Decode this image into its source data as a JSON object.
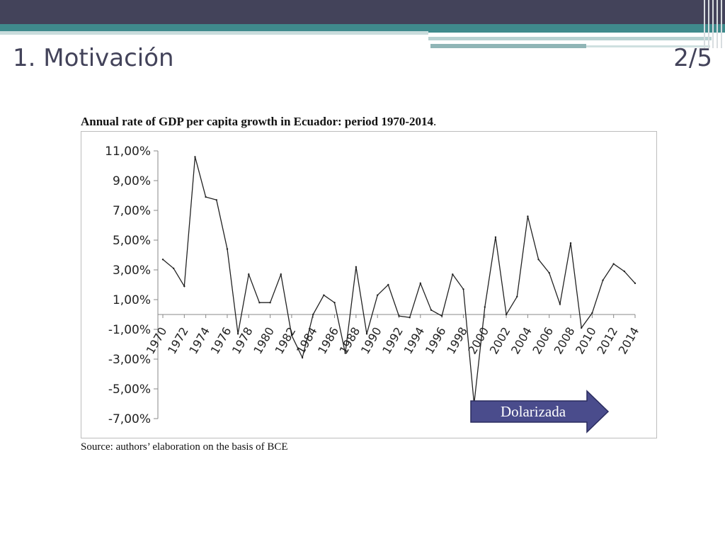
{
  "slide": {
    "title": "1. Motivación",
    "page_indicator": "2/5"
  },
  "colors": {
    "header_dark": "#43435a",
    "header_teal": "#3f8a8c",
    "arrow_fill": "#4a4c8c",
    "line": "#222222"
  },
  "caption": {
    "main": "Annual rate of GDP per capita growth in Ecuador: period 1970-2014",
    "trailing": "."
  },
  "source": "Source: authors’ elaboration on the basis of BCE",
  "chart_data": {
    "type": "line",
    "title": "",
    "xlabel": "",
    "ylabel": "",
    "ylim": [
      -7,
      11
    ],
    "yticks": [
      11,
      9,
      7,
      5,
      3,
      1,
      -1,
      -3,
      -5,
      -7
    ],
    "ytick_labels": [
      "11,00%",
      "9,00%",
      "7,00%",
      "5,00%",
      "3,00%",
      "1,00%",
      "-1,00%",
      "-3,00%",
      "-5,00%",
      "-7,00%"
    ],
    "xtick_labels": [
      "1970",
      "1972",
      "1974",
      "1976",
      "1978",
      "1980",
      "1982",
      "1984",
      "1986",
      "1988",
      "1990",
      "1992",
      "1994",
      "1996",
      "1998",
      "2000",
      "2002",
      "2004",
      "2006",
      "2008",
      "2010",
      "2012",
      "2014"
    ],
    "grid": false,
    "legend": "none",
    "x": [
      1970,
      1971,
      1972,
      1973,
      1974,
      1975,
      1976,
      1977,
      1978,
      1979,
      1980,
      1981,
      1982,
      1983,
      1984,
      1985,
      1986,
      1987,
      1988,
      1989,
      1990,
      1991,
      1992,
      1993,
      1994,
      1995,
      1996,
      1997,
      1998,
      1999,
      2000,
      2001,
      2002,
      2003,
      2004,
      2005,
      2006,
      2007,
      2008,
      2009,
      2010,
      2011,
      2012,
      2013,
      2014
    ],
    "values": [
      3.7,
      3.1,
      1.9,
      10.6,
      7.9,
      7.7,
      4.4,
      -1.3,
      2.7,
      0.8,
      0.8,
      2.7,
      -1.4,
      -2.9,
      0.0,
      1.3,
      0.8,
      -2.6,
      3.2,
      -1.3,
      1.3,
      2.0,
      -0.1,
      -0.2,
      2.1,
      0.3,
      -0.1,
      2.7,
      1.7,
      -6.0,
      0.5,
      5.2,
      0.0,
      1.2,
      6.6,
      3.7,
      2.8,
      0.7,
      4.8,
      -0.9,
      0.1,
      2.3,
      3.4,
      2.9,
      2.1
    ],
    "annotation": {
      "text": "Dolarizada",
      "from_x": 2000,
      "shape": "right-arrow"
    }
  }
}
